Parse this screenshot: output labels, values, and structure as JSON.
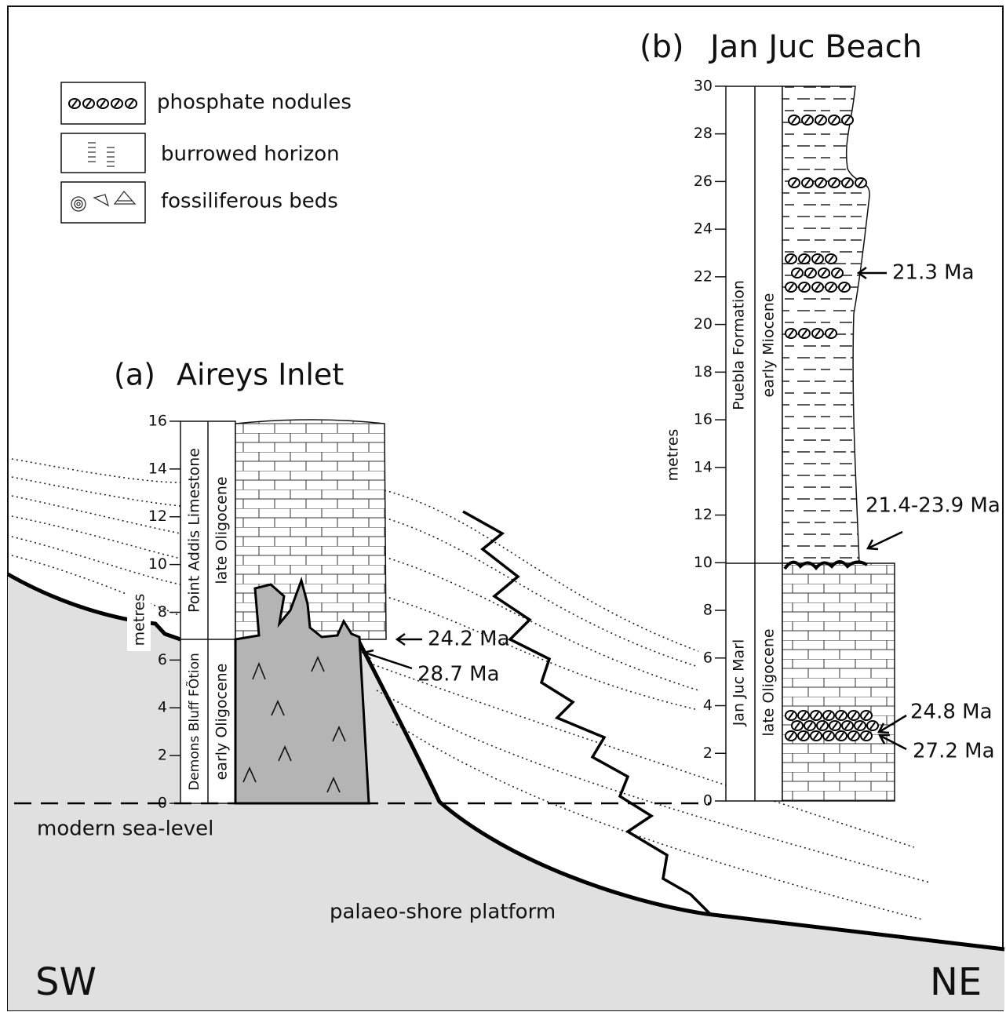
{
  "legend": {
    "items": [
      {
        "label": "phosphate nodules"
      },
      {
        "label": "burrowed horizon"
      },
      {
        "label": "fossiliferous beds"
      }
    ]
  },
  "section_a": {
    "letter": "(a)",
    "title": "Aireys Inlet",
    "axis_label": "metres",
    "ticks": [
      0,
      2,
      4,
      6,
      8,
      10,
      12,
      14,
      16
    ],
    "formations": [
      "Point Addis Limestone",
      "Demons Bluff FÕtion"
    ],
    "ages": [
      "late Oligocene",
      "early Oligocene"
    ],
    "dates": [
      "24.2 Ma",
      "28.7 Ma"
    ]
  },
  "section_b": {
    "letter": "(b)",
    "title": "Jan Juc Beach",
    "axis_label": "metres",
    "ticks": [
      0,
      2,
      4,
      6,
      8,
      10,
      12,
      14,
      16,
      18,
      20,
      22,
      24,
      26,
      28,
      30
    ],
    "formations": [
      "Puebla Formation",
      "Jan Juc Marl"
    ],
    "ages": [
      "early Miocene",
      "late Oligocene"
    ],
    "dates": [
      "21.3 Ma",
      "21.4-23.9 Ma",
      "24.8 Ma",
      "27.2 Ma"
    ]
  },
  "labels": {
    "sea_level": "modern sea-level",
    "platform": "palaeo-shore platform",
    "sw": "SW",
    "ne": "NE"
  }
}
